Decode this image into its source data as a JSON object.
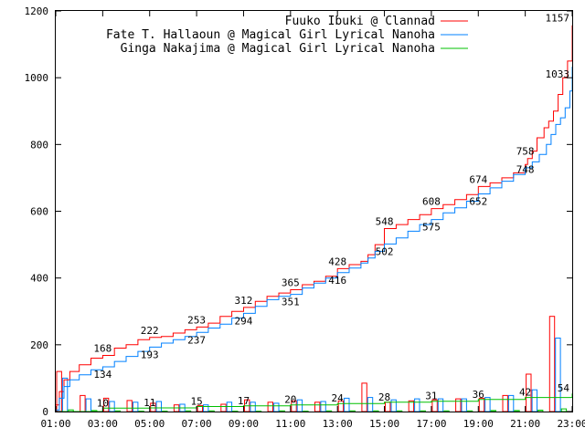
{
  "chart_data": {
    "type": "line",
    "title": "",
    "xlabel": "",
    "ylabel": "",
    "xlim": [
      1,
      23
    ],
    "ylim": [
      0,
      1200
    ],
    "grid": false,
    "legend_position": "top-right",
    "x_ticks": [
      "01:00",
      "03:00",
      "05:00",
      "07:00",
      "09:00",
      "11:00",
      "13:00",
      "15:00",
      "17:00",
      "19:00",
      "21:00",
      "23:00"
    ],
    "x_tick_values": [
      1,
      3,
      5,
      7,
      9,
      11,
      13,
      15,
      17,
      19,
      21,
      23
    ],
    "y_ticks": [
      "0",
      "200",
      "400",
      "600",
      "800",
      "1000",
      "1200"
    ],
    "y_tick_values": [
      0,
      200,
      400,
      600,
      800,
      1000,
      1200
    ],
    "series": [
      {
        "name": "Fuuko Ibuki @ Clannad",
        "color": "#ff0000",
        "cumulative": {
          "x": [
            1.0,
            1.15,
            1.35,
            1.6,
            2.0,
            2.5,
            3.0,
            3.5,
            4.0,
            4.5,
            5.0,
            5.5,
            6.0,
            6.5,
            7.0,
            7.5,
            8.0,
            8.5,
            9.0,
            9.5,
            10.0,
            10.5,
            11.0,
            11.5,
            12.0,
            12.5,
            13.0,
            13.5,
            14.0,
            14.3,
            14.6,
            15.0,
            15.5,
            16.0,
            16.5,
            17.0,
            17.5,
            18.0,
            18.5,
            19.0,
            19.5,
            20.0,
            20.5,
            21.0,
            21.1,
            21.3,
            21.5,
            21.8,
            22.0,
            22.2,
            22.4,
            22.6,
            22.8,
            23.0
          ],
          "y": [
            20,
            60,
            95,
            120,
            140,
            160,
            168,
            190,
            200,
            215,
            222,
            225,
            235,
            245,
            253,
            265,
            285,
            300,
            312,
            330,
            345,
            355,
            365,
            380,
            390,
            405,
            428,
            440,
            450,
            470,
            500,
            548,
            560,
            575,
            590,
            608,
            620,
            635,
            650,
            674,
            685,
            700,
            715,
            740,
            758,
            780,
            820,
            850,
            870,
            900,
            950,
            1000,
            1050,
            1157
          ]
        },
        "cumulative_labels": [
          {
            "x": 3.0,
            "y": 168,
            "text": "168"
          },
          {
            "x": 5.0,
            "y": 222,
            "text": "222"
          },
          {
            "x": 7.0,
            "y": 253,
            "text": "253"
          },
          {
            "x": 9.0,
            "y": 312,
            "text": "312"
          },
          {
            "x": 11.0,
            "y": 365,
            "text": "365"
          },
          {
            "x": 13.0,
            "y": 428,
            "text": "428"
          },
          {
            "x": 15.0,
            "y": 548,
            "text": "548"
          },
          {
            "x": 17.0,
            "y": 608,
            "text": "608"
          },
          {
            "x": 19.0,
            "y": 674,
            "text": "674"
          },
          {
            "x": 21.0,
            "y": 758,
            "text": "758"
          },
          {
            "x": 23.0,
            "y": 1157,
            "text": "1157"
          }
        ],
        "hourly": {
          "x": [
            1,
            2,
            3,
            4,
            5,
            6,
            7,
            8,
            9,
            10,
            11,
            12,
            13,
            14,
            15,
            16,
            17,
            18,
            19,
            20,
            21,
            22
          ],
          "values": [
            120,
            48,
            40,
            33,
            25,
            20,
            18,
            22,
            35,
            28,
            32,
            28,
            32,
            85,
            28,
            32,
            35,
            38,
            40,
            48,
            112,
            285
          ]
        }
      },
      {
        "name": "Fate T. Hallaoun @ Magical Girl Lyrical Nanoha",
        "color": "#0080ff",
        "cumulative": {
          "x": [
            1.0,
            1.15,
            1.35,
            1.6,
            2.0,
            2.5,
            3.0,
            3.5,
            4.0,
            4.5,
            5.0,
            5.5,
            6.0,
            6.5,
            7.0,
            7.5,
            8.0,
            8.5,
            9.0,
            9.5,
            10.0,
            10.5,
            11.0,
            11.5,
            12.0,
            12.5,
            13.0,
            13.5,
            14.0,
            14.3,
            14.6,
            15.0,
            15.5,
            16.0,
            16.5,
            17.0,
            17.5,
            18.0,
            18.5,
            19.0,
            19.5,
            20.0,
            20.5,
            21.0,
            21.3,
            21.6,
            21.9,
            22.1,
            22.3,
            22.5,
            22.7,
            22.9,
            23.0
          ],
          "y": [
            5,
            40,
            75,
            95,
            110,
            125,
            134,
            150,
            165,
            180,
            193,
            205,
            215,
            225,
            237,
            250,
            262,
            280,
            294,
            315,
            335,
            345,
            351,
            370,
            385,
            400,
            416,
            430,
            445,
            460,
            480,
            502,
            520,
            540,
            560,
            575,
            595,
            610,
            630,
            652,
            670,
            690,
            710,
            730,
            748,
            770,
            800,
            830,
            860,
            880,
            910,
            960,
            1033
          ]
        },
        "cumulative_labels": [
          {
            "x": 3.0,
            "y": 134,
            "text": "134"
          },
          {
            "x": 5.0,
            "y": 193,
            "text": "193"
          },
          {
            "x": 7.0,
            "y": 237,
            "text": "237"
          },
          {
            "x": 9.0,
            "y": 294,
            "text": "294"
          },
          {
            "x": 11.0,
            "y": 351,
            "text": "351"
          },
          {
            "x": 13.0,
            "y": 416,
            "text": "416"
          },
          {
            "x": 15.0,
            "y": 502,
            "text": "502"
          },
          {
            "x": 17.0,
            "y": 575,
            "text": "575"
          },
          {
            "x": 19.0,
            "y": 652,
            "text": "652"
          },
          {
            "x": 21.0,
            "y": 748,
            "text": "748"
          },
          {
            "x": 23.0,
            "y": 1033,
            "text": "1033"
          }
        ],
        "hourly": {
          "x": [
            1,
            2,
            3,
            4,
            5,
            6,
            7,
            8,
            9,
            10,
            11,
            12,
            13,
            14,
            15,
            16,
            17,
            18,
            19,
            20,
            21,
            22
          ],
          "values": [
            100,
            38,
            30,
            28,
            30,
            22,
            20,
            28,
            28,
            25,
            35,
            30,
            40,
            42,
            35,
            38,
            38,
            38,
            42,
            48,
            65,
            220
          ]
        }
      },
      {
        "name": "Ginga Nakajima @ Magical Girl Lyrical Nanoha",
        "color": "#00c000",
        "cumulative": {
          "x": [
            1.0,
            3.0,
            5.0,
            7.0,
            9.0,
            11.0,
            13.0,
            15.0,
            17.0,
            19.0,
            21.0,
            23.0
          ],
          "y": [
            0,
            10,
            11,
            15,
            17,
            20,
            24,
            28,
            31,
            36,
            42,
            54
          ]
        },
        "cumulative_labels": [
          {
            "x": 3.0,
            "y": 10,
            "text": "10"
          },
          {
            "x": 5.0,
            "y": 11,
            "text": "11"
          },
          {
            "x": 7.0,
            "y": 15,
            "text": "15"
          },
          {
            "x": 9.0,
            "y": 17,
            "text": "17"
          },
          {
            "x": 11.0,
            "y": 20,
            "text": "20"
          },
          {
            "x": 13.0,
            "y": 24,
            "text": "24"
          },
          {
            "x": 15.0,
            "y": 28,
            "text": "28"
          },
          {
            "x": 17.0,
            "y": 31,
            "text": "31"
          },
          {
            "x": 19.0,
            "y": 36,
            "text": "36"
          },
          {
            "x": 21.0,
            "y": 42,
            "text": "42"
          },
          {
            "x": 23.0,
            "y": 54,
            "text": "54"
          }
        ],
        "hourly": {
          "x": [
            1,
            2,
            3,
            4,
            5,
            6,
            7,
            8,
            9,
            10,
            11,
            12,
            13,
            14,
            15,
            16,
            17,
            18,
            19,
            20,
            21,
            22
          ],
          "values": [
            5,
            3,
            2,
            1,
            1,
            2,
            2,
            1,
            1,
            2,
            1,
            2,
            2,
            2,
            2,
            2,
            2,
            2,
            3,
            3,
            4,
            8
          ]
        }
      }
    ]
  }
}
